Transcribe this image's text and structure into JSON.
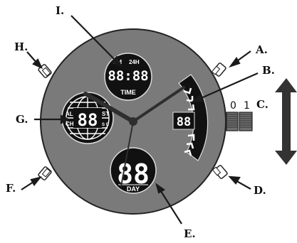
{
  "callouts": {
    "a": "A.",
    "b": "B.",
    "c": "C.",
    "d": "D.",
    "e": "E.",
    "f": "F.",
    "g": "G.",
    "h": "H.",
    "i": "I."
  },
  "time_display": {
    "am_pm": "PM",
    "mode_24h": "24H",
    "digits": "88:88",
    "label": "TIME"
  },
  "day_display": {
    "digits": "88",
    "label": "DAY"
  },
  "world_display": {
    "left_top": "AL",
    "left_bottom": "CH",
    "digits": "88",
    "right_top": "ST",
    "right_bottom": "S C"
  },
  "bar_display": {
    "digits": "88"
  },
  "crown": {
    "position_0": "0",
    "position_1": "1"
  },
  "colors": {
    "case": "#7a7a7a",
    "dial_stroke": "#222222",
    "lcd": "#111111",
    "lcd_text": "#ffffff",
    "pusher": "#ffffff",
    "arrow": "#2b2b2b"
  }
}
